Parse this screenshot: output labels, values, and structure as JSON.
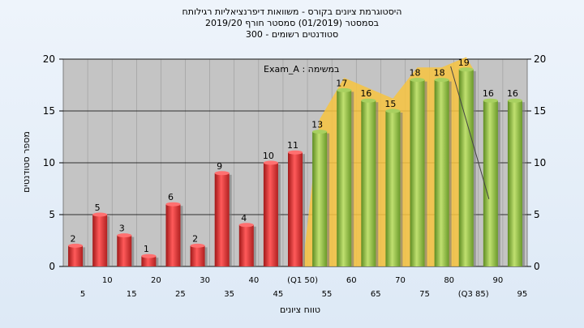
{
  "header": {
    "title_line1": "היסטוגרמת ציונים בקורס - משוואות דיפרנציאליות רגילותח",
    "title_line2": "בסמסטר (01/2019) סמסטר חורף 2019/20",
    "title_line3": "סטודנטים רשומים - 300"
  },
  "colors": {
    "low_bar": "#e43c3c",
    "high_bar": "#94c04a",
    "area": "#f8c440",
    "plot_bg": "#c4c4c4"
  },
  "chart_data": {
    "type": "bar",
    "title": "",
    "xlabel": "טווח ציונים",
    "ylabel": "מספר סטודנטים",
    "ylim": [
      0,
      20
    ],
    "yticks": [
      0,
      5,
      10,
      15,
      20
    ],
    "legend": "Exam_A : במשימה",
    "grid": true,
    "categories": [
      "5",
      "10",
      "15",
      "20",
      "25",
      "30",
      "35",
      "40",
      "45",
      "(Q1 50)",
      "55",
      "60",
      "65",
      "70",
      "75",
      "80",
      "(Q3 85)",
      "90",
      "95"
    ],
    "values": [
      2,
      5,
      3,
      1,
      6,
      2,
      9,
      4,
      10,
      11,
      13,
      17,
      16,
      15,
      18,
      18,
      19,
      16,
      16
    ],
    "value_labels": [
      "2",
      "5",
      "3",
      "1",
      "6",
      "2",
      "9",
      "4",
      "10",
      "11",
      "13",
      "17",
      "16",
      "15",
      "18",
      "18",
      "19",
      "16",
      "16"
    ]
  }
}
